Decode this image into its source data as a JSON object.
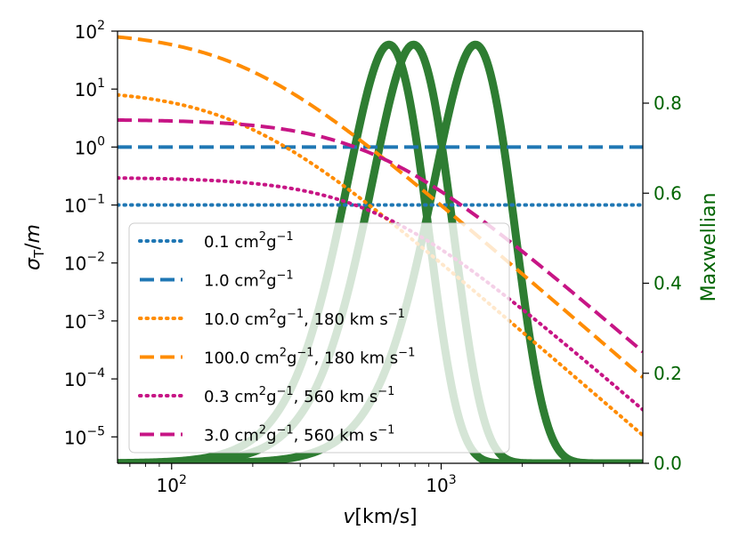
{
  "chart_data": {
    "type": "line",
    "xscale": "log",
    "yscale_left": "log",
    "xlim": [
      63,
      5600
    ],
    "ylim_left": [
      3.5e-06,
      100
    ],
    "ylim_right": [
      0.0,
      0.96
    ],
    "xlabel": {
      "italic": "v",
      "rest": "[km/s]"
    },
    "ylabel_left": {
      "italic_base": "σ",
      "sub": "T",
      "rest": "/",
      "italic_tail": "m"
    },
    "ylabel_right": "Maxwellian",
    "x_ticks_major": [
      {
        "value": 100,
        "base": "10",
        "exp": "2"
      },
      {
        "value": 1000,
        "base": "10",
        "exp": "3"
      }
    ],
    "y_ticks_left": [
      {
        "value": 100,
        "base": "10",
        "exp": "2"
      },
      {
        "value": 10,
        "base": "10",
        "exp": "1"
      },
      {
        "value": 1,
        "base": "10",
        "exp": "0"
      },
      {
        "value": 0.1,
        "base": "10",
        "exp": "−1"
      },
      {
        "value": 0.01,
        "base": "10",
        "exp": "−2"
      },
      {
        "value": 0.001,
        "base": "10",
        "exp": "−3"
      },
      {
        "value": 0.0001,
        "base": "10",
        "exp": "−4"
      },
      {
        "value": 1e-05,
        "base": "10",
        "exp": "−5"
      }
    ],
    "y_ticks_right": [
      {
        "value": 0.0,
        "label": "0.0"
      },
      {
        "value": 0.2,
        "label": "0.2"
      },
      {
        "value": 0.4,
        "label": "0.4"
      },
      {
        "value": 0.6,
        "label": "0.6"
      },
      {
        "value": 0.8,
        "label": "0.8"
      }
    ],
    "colors": {
      "blue": "#1f77b4",
      "orange": "#ff8c00",
      "magenta": "#c71585",
      "green": "#2e7d32",
      "right_axis": "#006400"
    },
    "series": [
      {
        "name": "0.1 cm2g-1",
        "model": "constant",
        "sigma0": 0.1,
        "color": "#1f77b4",
        "dash": "dotted",
        "legend": {
          "num": "0.1 cm",
          "sup1": "2",
          "g": "g",
          "sup2": "−1",
          "tail": ""
        }
      },
      {
        "name": "1.0 cm2g-1",
        "model": "constant",
        "sigma0": 1.0,
        "color": "#1f77b4",
        "dash": "dashed",
        "legend": {
          "num": "1.0 cm",
          "sup1": "2",
          "g": "g",
          "sup2": "−1",
          "tail": ""
        }
      },
      {
        "name": "10.0 cm2g-1, 180 km s-1",
        "model": "velocity-dependent",
        "sigma0": 10.0,
        "w": 180,
        "color": "#ff8c00",
        "dash": "dotted",
        "legend": {
          "num": "10.0 cm",
          "sup1": "2",
          "g": "g",
          "sup2": "−1",
          "tail": ", 180 km s",
          "sup3": "−1"
        }
      },
      {
        "name": "100.0 cm2g-1, 180 km s-1",
        "model": "velocity-dependent",
        "sigma0": 100.0,
        "w": 180,
        "color": "#ff8c00",
        "dash": "dashed",
        "legend": {
          "num": "100.0 cm",
          "sup1": "2",
          "g": "g",
          "sup2": "−1",
          "tail": ", 180 km s",
          "sup3": "−1"
        }
      },
      {
        "name": "0.3 cm2g-1, 560 km s-1",
        "model": "velocity-dependent",
        "sigma0": 0.3,
        "w": 560,
        "color": "#c71585",
        "dash": "dotted",
        "legend": {
          "num": "0.3 cm",
          "sup1": "2",
          "g": "g",
          "sup2": "−1",
          "tail": ", 560 km s",
          "sup3": "−1"
        }
      },
      {
        "name": "3.0 cm2g-1, 560 km s-1",
        "model": "velocity-dependent",
        "sigma0": 3.0,
        "w": 560,
        "color": "#c71585",
        "dash": "dashed",
        "legend": {
          "num": "3.0 cm",
          "sup1": "2",
          "g": "g",
          "sup2": "−1",
          "tail": ", 560 km s",
          "sup3": "−1"
        }
      }
    ],
    "maxwellians": [
      {
        "name": "maxwellian-1",
        "peak_velocity": 640,
        "peak_value": 0.93,
        "color": "#2e7d32"
      },
      {
        "name": "maxwellian-2",
        "peak_velocity": 790,
        "peak_value": 0.93,
        "color": "#2e7d32"
      },
      {
        "name": "maxwellian-3",
        "peak_velocity": 1340,
        "peak_value": 0.93,
        "color": "#2e7d32"
      }
    ],
    "legend_position": "lower-left"
  }
}
